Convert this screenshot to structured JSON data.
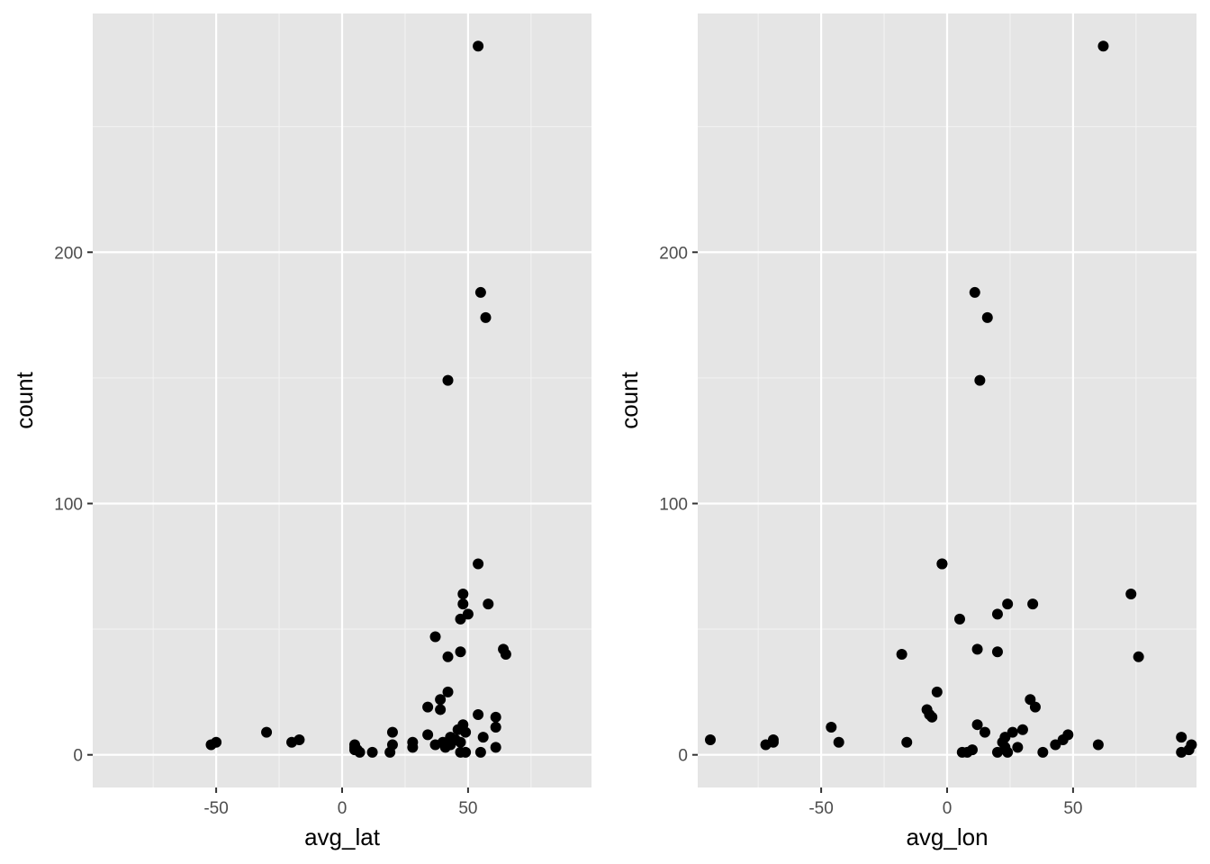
{
  "chart_data": [
    {
      "type": "scatter",
      "xlabel": "avg_lat",
      "ylabel": "count",
      "xlim": [
        -99,
        99
      ],
      "ylim": [
        -13,
        295
      ],
      "x_ticks": [
        -50,
        0,
        50
      ],
      "x_tick_labels": [
        "-50",
        "0",
        "50"
      ],
      "y_ticks": [
        0,
        100,
        200
      ],
      "y_tick_labels": [
        "0",
        "100",
        "200"
      ],
      "grid": true,
      "point_color": "#000000",
      "panel_color": "#e5e5e5",
      "points": [
        [
          54,
          282
        ],
        [
          55,
          184
        ],
        [
          57,
          174
        ],
        [
          42,
          149
        ],
        [
          54,
          76
        ],
        [
          48,
          64
        ],
        [
          48,
          60
        ],
        [
          58,
          60
        ],
        [
          50,
          56
        ],
        [
          47,
          54
        ],
        [
          37,
          47
        ],
        [
          47,
          41
        ],
        [
          64,
          42
        ],
        [
          65,
          40
        ],
        [
          42,
          39
        ],
        [
          42,
          25
        ],
        [
          39,
          22
        ],
        [
          34,
          19
        ],
        [
          39,
          18
        ],
        [
          54,
          16
        ],
        [
          61,
          15
        ],
        [
          61,
          11
        ],
        [
          48,
          12
        ],
        [
          49,
          9
        ],
        [
          46,
          10
        ],
        [
          -30,
          9
        ],
        [
          20,
          9
        ],
        [
          34,
          8
        ],
        [
          56,
          7
        ],
        [
          43,
          7
        ],
        [
          45,
          6
        ],
        [
          47,
          5
        ],
        [
          40,
          5
        ],
        [
          37,
          4
        ],
        [
          28,
          5
        ],
        [
          41,
          3
        ],
        [
          -17,
          6
        ],
        [
          -20,
          5
        ],
        [
          -50,
          5
        ],
        [
          -52,
          4
        ],
        [
          5,
          4
        ],
        [
          5,
          3
        ],
        [
          5,
          2
        ],
        [
          7,
          1
        ],
        [
          6,
          2
        ],
        [
          12,
          1
        ],
        [
          19,
          1
        ],
        [
          20,
          4
        ],
        [
          28,
          3
        ],
        [
          41,
          4
        ],
        [
          43,
          4
        ],
        [
          47,
          1
        ],
        [
          49,
          1
        ],
        [
          55,
          1
        ],
        [
          61,
          3
        ]
      ]
    },
    {
      "type": "scatter",
      "xlabel": "avg_lon",
      "ylabel": "count",
      "xlim": [
        -99,
        99
      ],
      "ylim": [
        -13,
        295
      ],
      "x_ticks": [
        -50,
        0,
        50
      ],
      "x_tick_labels": [
        "-50",
        "0",
        "50"
      ],
      "y_ticks": [
        0,
        100,
        200
      ],
      "y_tick_labels": [
        "0",
        "100",
        "200"
      ],
      "grid": true,
      "point_color": "#000000",
      "panel_color": "#e5e5e5",
      "points": [
        [
          62,
          282
        ],
        [
          11,
          184
        ],
        [
          16,
          174
        ],
        [
          13,
          149
        ],
        [
          -2,
          76
        ],
        [
          73,
          64
        ],
        [
          24,
          60
        ],
        [
          34,
          60
        ],
        [
          20,
          56
        ],
        [
          5,
          54
        ],
        [
          20,
          41
        ],
        [
          12,
          42
        ],
        [
          76,
          39
        ],
        [
          -18,
          40
        ],
        [
          -4,
          25
        ],
        [
          33,
          22
        ],
        [
          35,
          19
        ],
        [
          -8,
          18
        ],
        [
          -7,
          16
        ],
        [
          -6,
          15
        ],
        [
          12,
          12
        ],
        [
          15,
          9
        ],
        [
          -46,
          11
        ],
        [
          30,
          10
        ],
        [
          48,
          8
        ],
        [
          26,
          9
        ],
        [
          23,
          7
        ],
        [
          46,
          6
        ],
        [
          -94,
          6
        ],
        [
          -69,
          6
        ],
        [
          -69,
          5
        ],
        [
          -72,
          4
        ],
        [
          -43,
          5
        ],
        [
          -16,
          5
        ],
        [
          22,
          5
        ],
        [
          43,
          4
        ],
        [
          60,
          4
        ],
        [
          23,
          3
        ],
        [
          28,
          3
        ],
        [
          8,
          1
        ],
        [
          10,
          2
        ],
        [
          20,
          1
        ],
        [
          24,
          1
        ],
        [
          38,
          1
        ],
        [
          93,
          7
        ],
        [
          97,
          4
        ],
        [
          96,
          2
        ],
        [
          93,
          1
        ],
        [
          6,
          1
        ],
        [
          -2,
          76
        ]
      ]
    }
  ]
}
